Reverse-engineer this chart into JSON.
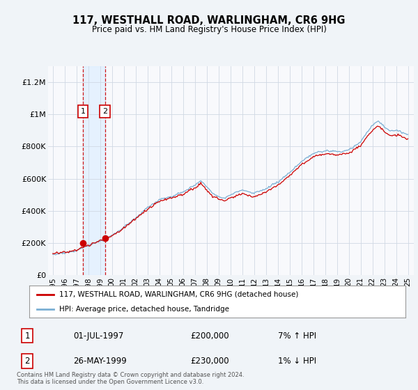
{
  "title": "117, WESTHALL ROAD, WARLINGHAM, CR6 9HG",
  "subtitle": "Price paid vs. HM Land Registry's House Price Index (HPI)",
  "legend_line1": "117, WESTHALL ROAD, WARLINGHAM, CR6 9HG (detached house)",
  "legend_line2": "HPI: Average price, detached house, Tandridge",
  "table_rows": [
    {
      "num": "1",
      "date": "01-JUL-1997",
      "price": "£200,000",
      "hpi": "7% ↑ HPI"
    },
    {
      "num": "2",
      "date": "26-MAY-1999",
      "price": "£230,000",
      "hpi": "1% ↓ HPI"
    }
  ],
  "footnote": "Contains HM Land Registry data © Crown copyright and database right 2024.\nThis data is licensed under the Open Government Licence v3.0.",
  "sale_color": "#cc0000",
  "hpi_color": "#7aafd4",
  "shade_color": "#ddeeff",
  "background_color": "#f0f4f8",
  "plot_bg_color": "#f8f9fc",
  "grid_color": "#d0d8e4",
  "ylim": [
    0,
    1300000
  ],
  "yticks": [
    0,
    200000,
    400000,
    600000,
    800000,
    1000000,
    1200000
  ],
  "ytick_labels": [
    "£0",
    "£200K",
    "£400K",
    "£600K",
    "£800K",
    "£1M",
    "£1.2M"
  ],
  "sale_points": [
    {
      "year": 1997.54,
      "price": 200000,
      "label": "1"
    },
    {
      "year": 1999.4,
      "price": 230000,
      "label": "2"
    }
  ],
  "sale_vlines": [
    1997.54,
    1999.4
  ],
  "xmin": 1994.6,
  "xmax": 2025.5,
  "xtick_years": [
    1995,
    1996,
    1997,
    1998,
    1999,
    2000,
    2001,
    2002,
    2003,
    2004,
    2005,
    2006,
    2007,
    2008,
    2009,
    2010,
    2011,
    2012,
    2013,
    2014,
    2015,
    2016,
    2017,
    2018,
    2019,
    2020,
    2021,
    2022,
    2023,
    2024,
    2025
  ],
  "xtick_labels": [
    "1995",
    "1996",
    "1997",
    "1998",
    "1999",
    "00",
    "01",
    "02",
    "03",
    "04",
    "05",
    "06",
    "07",
    "08",
    "09",
    "10",
    "11",
    "12",
    "13",
    "14",
    "15",
    "16",
    "17",
    "18",
    "19",
    "20",
    "21",
    "22",
    "23",
    "24",
    "25"
  ]
}
